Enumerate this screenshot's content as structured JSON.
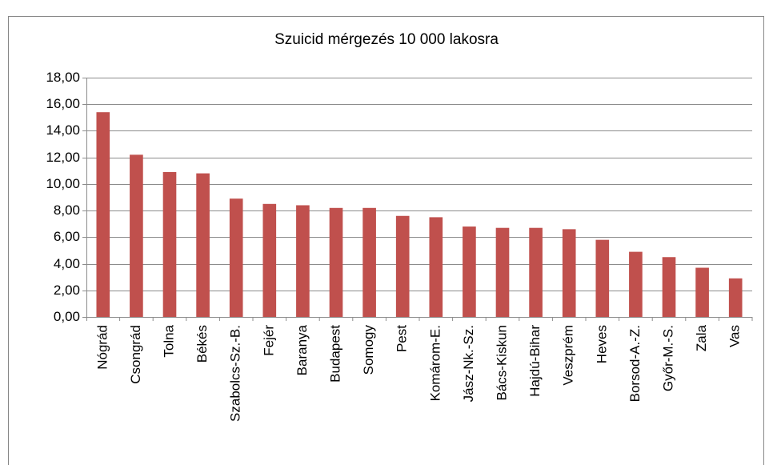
{
  "chart_data": {
    "type": "bar",
    "title": "Szuicid mérgezés 10 000 lakosra",
    "categories": [
      "Nógrád",
      "Csongrád",
      "Tolna",
      "Békés",
      "Szabolcs-Sz.-B.",
      "Fejér",
      "Baranya",
      "Budapest",
      "Somogy",
      "Pest",
      "Komárom-E.",
      "Jász-Nk.-Sz.",
      "Bács-Kiskun",
      "Hajdú-Bihar",
      "Veszprém",
      "Heves",
      "Borsod-A.-Z.",
      "Győr-M.-S.",
      "Zala",
      "Vas"
    ],
    "values": [
      15.4,
      12.2,
      10.9,
      10.8,
      8.9,
      8.5,
      8.4,
      8.2,
      8.2,
      7.6,
      7.5,
      6.8,
      6.7,
      6.7,
      6.6,
      5.8,
      4.9,
      4.5,
      3.7,
      2.9
    ],
    "color": "#c0504d",
    "ylim": [
      0,
      18
    ],
    "yticks": [
      {
        "value": 0,
        "label": "0,00"
      },
      {
        "value": 2,
        "label": "2,00"
      },
      {
        "value": 4,
        "label": "4,00"
      },
      {
        "value": 6,
        "label": "6,00"
      },
      {
        "value": 8,
        "label": "8,00"
      },
      {
        "value": 10,
        "label": "10,00"
      },
      {
        "value": 12,
        "label": "12,00"
      },
      {
        "value": 14,
        "label": "14,00"
      },
      {
        "value": 16,
        "label": "16,00"
      },
      {
        "value": 18,
        "label": "18,00"
      }
    ],
    "grid": true
  }
}
